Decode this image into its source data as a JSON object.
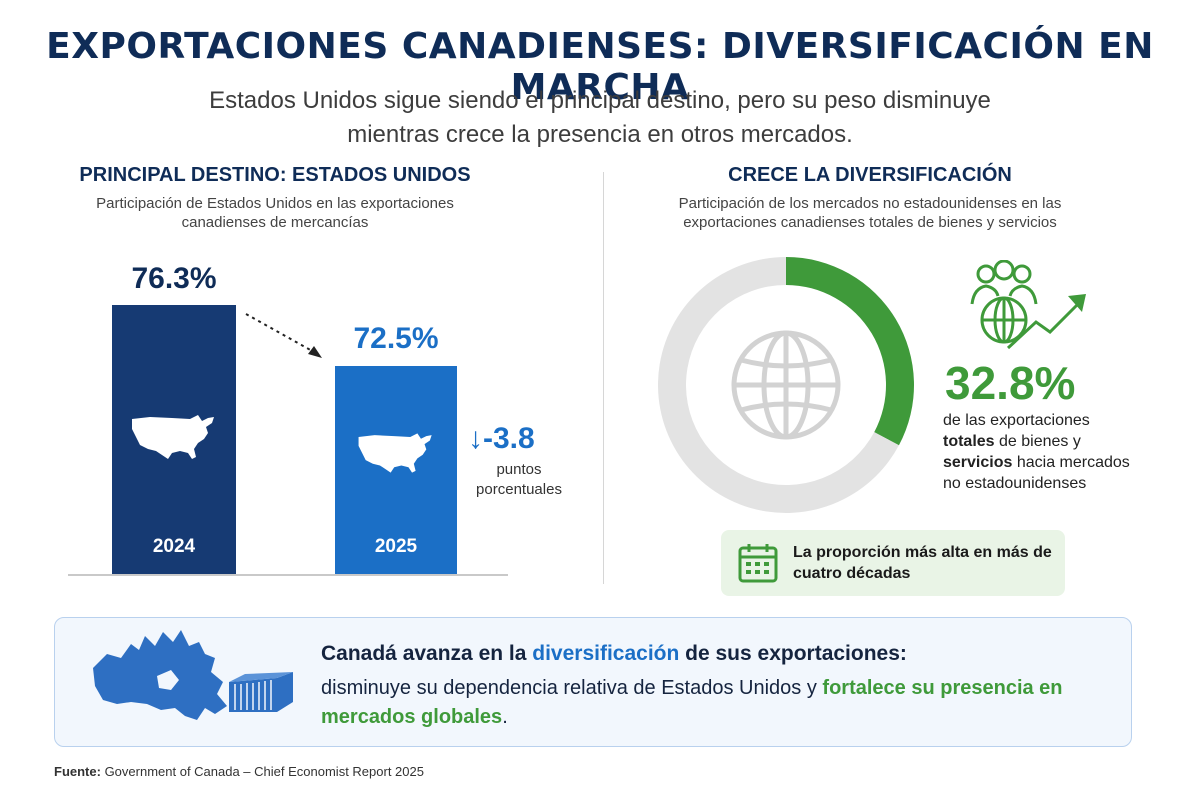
{
  "title": "EXPORTACIONES CANADIENSES: DIVERSIFICACIÓN EN MARCHA",
  "subtitle": "Estados Unidos sigue siendo el principal destino, pero su peso disminuye mientras crece la presencia en otros mercados.",
  "left_panel": {
    "heading": "PRINCIPAL DESTINO: ESTADOS UNIDOS",
    "caption": "Participación de Estados Unidos en las exportaciones canadienses de mercancías",
    "change_value": "↓-3.8",
    "change_unit": "puntos porcentuales"
  },
  "right_panel": {
    "heading": "CRECE LA DIVERSIFICACIÓN",
    "caption": "Participación de los mercados no estadounidenses en las exportaciones canadienses totales de bienes y servicios",
    "big_value": "32.8%",
    "desc_1": "de las exportaciones ",
    "desc_bold_1": "totales",
    "desc_2": " de bienes y ",
    "desc_bold_2": "servicios",
    "desc_3": " hacia mercados no estadounidenses",
    "record_text": "La proporción más alta en más de cuatro décadas"
  },
  "banner": {
    "line1_a": "Canadá avanza en la ",
    "line1_b": "diversificación",
    "line1_c": " de sus exportaciones:",
    "line2_a": "disminuye su dependencia relativa de Estados Unidos y ",
    "line2_b": "fortalece su presencia en mercados globales",
    "line2_c": "."
  },
  "source": {
    "label": "Fuente:",
    "text": " Government of Canada – Chief Economist Report 2025"
  },
  "colors": {
    "navy": "#163a73",
    "blue": "#1b6fc6",
    "green": "#3f9a3a",
    "grey_ring": "#e3e3e3"
  },
  "chart_data": [
    {
      "type": "bar",
      "categories": [
        "2024",
        "2025"
      ],
      "values": [
        76.3,
        72.5
      ],
      "value_labels": [
        "76.3%",
        "72.5%"
      ],
      "colors": [
        "#163a73",
        "#1b6fc6"
      ]
    },
    {
      "type": "pie",
      "style": "donut",
      "values": [
        32.8,
        67.2
      ],
      "colors": [
        "#3f9a3a",
        "#e3e3e3"
      ]
    }
  ]
}
